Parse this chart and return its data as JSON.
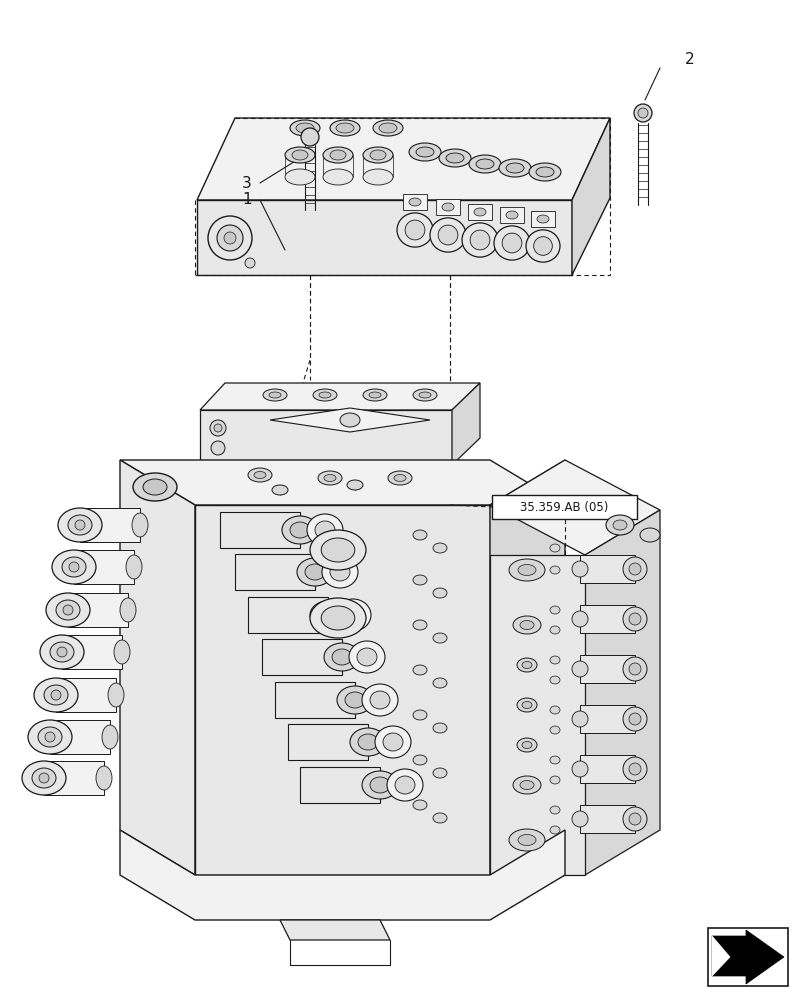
{
  "bg_color": "#ffffff",
  "line_color": "#1a1a1a",
  "fig_width": 8.08,
  "fig_height": 10.0,
  "dpi": 100,
  "ref_label": "35.359.AB (05)"
}
